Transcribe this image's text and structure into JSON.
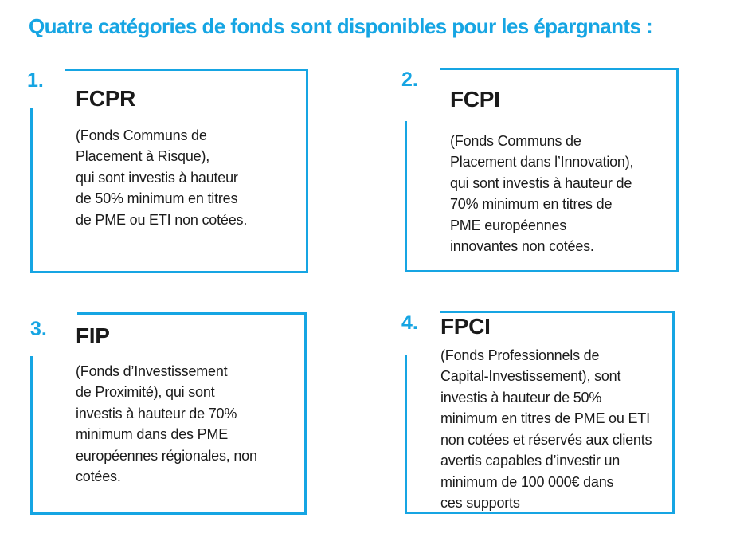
{
  "page_title": "Quatre catégories de fonds sont disponibles pour les épargnants :",
  "colors": {
    "accent": "#16a5e3",
    "text": "#1b1b1b",
    "background": "#ffffff"
  },
  "cards": [
    {
      "number": "1.",
      "acronym": "FCPR",
      "description": "(Fonds Communs de\nPlacement à Risque),\nqui sont investis à hauteur\nde 50% minimum en titres\nde PME ou ETI non cotées."
    },
    {
      "number": "2.",
      "acronym": "FCPI",
      "description": "(Fonds Communs de\nPlacement dans l’Innovation),\nqui sont investis à hauteur de\n70% minimum en titres de\nPME européennes\ninnovantes non cotées."
    },
    {
      "number": "3.",
      "acronym": "FIP",
      "description": "(Fonds d’Investissement\nde Proximité), qui sont\ninvestis à hauteur de 70%\nminimum dans des PME\neuropéennes régionales, non\ncotées."
    },
    {
      "number": "4.",
      "acronym": "FPCI",
      "description": "(Fonds Professionnels de\nCapital-Investissement), sont\ninvestis à hauteur de 50%\nminimum en titres de PME ou ETI\nnon cotées et réservés aux clients\navertis capables d’investir un\nminimum de 100 000€ dans\nces supports"
    }
  ]
}
